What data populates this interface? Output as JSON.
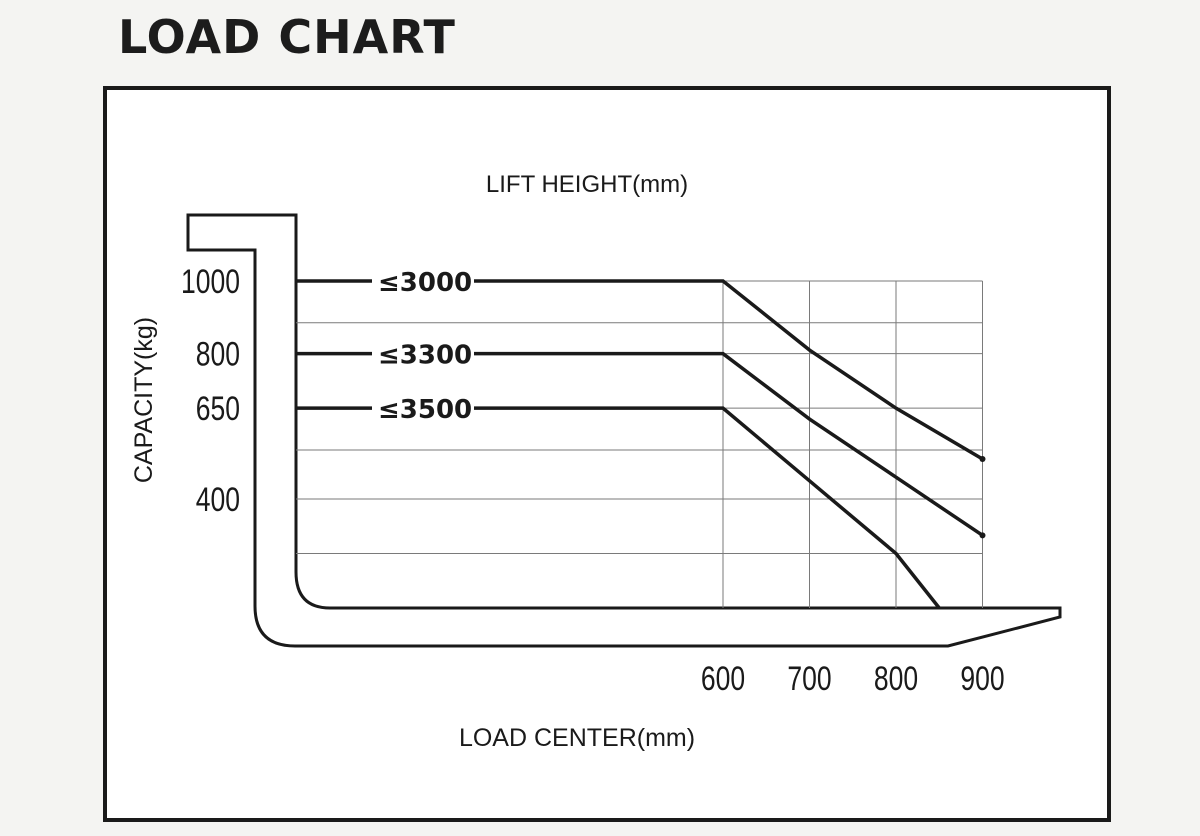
{
  "page_title": "LOAD CHART",
  "chart_data": {
    "type": "line",
    "title": "LIFT HEIGHT(mm)",
    "xlabel": "LOAD CENTER(mm)",
    "ylabel": "CAPACITY(kg)",
    "x_ticks": [
      "600",
      "700",
      "800",
      "900"
    ],
    "y_ticks": [
      "1000",
      "800",
      "650",
      "400"
    ],
    "grid": true,
    "series": [
      {
        "name": "≤3000",
        "points": [
          [
            600,
            1000
          ],
          [
            700,
            810
          ],
          [
            800,
            650
          ],
          [
            900,
            510
          ]
        ]
      },
      {
        "name": "≤3300",
        "points": [
          [
            600,
            800
          ],
          [
            700,
            620
          ],
          [
            800,
            460
          ],
          [
            900,
            300
          ]
        ]
      },
      {
        "name": "≤3500",
        "points": [
          [
            600,
            650
          ],
          [
            700,
            450
          ],
          [
            800,
            250
          ],
          [
            850,
            100
          ]
        ]
      }
    ]
  }
}
